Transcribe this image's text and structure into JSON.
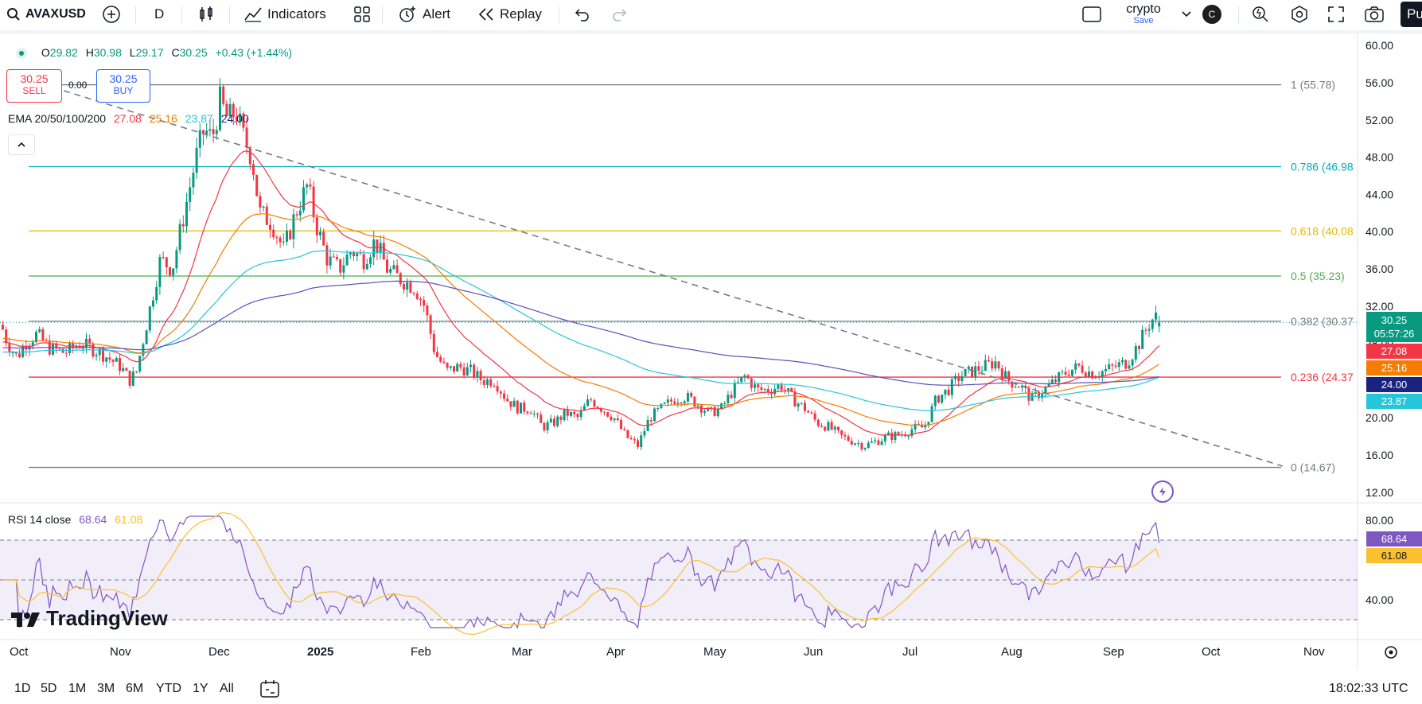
{
  "toolbar": {
    "symbol": "AVAXUSD",
    "interval": "D",
    "indicators_label": "Indicators",
    "alert_label": "Alert",
    "replay_label": "Replay",
    "layout_name": "crypto",
    "layout_sub": "Save",
    "avatar_letter": "C",
    "publish_label": "Pu"
  },
  "legend": {
    "o_label": "O",
    "o": "29.82",
    "h_label": "H",
    "h": "30.98",
    "l_label": "L",
    "l": "29.17",
    "c_label": "C",
    "c": "30.25",
    "change": "+0.43 (+1.44%)",
    "sell_price": "30.25",
    "sell_label": "SELL",
    "spread": "0.00",
    "buy_price": "30.25",
    "buy_label": "BUY",
    "ema_title": "EMA 20/50/100/200",
    "ema20": "27.08",
    "ema50": "25.16",
    "ema100": "23.87",
    "ema200": "24.00"
  },
  "rsi": {
    "title": "RSI 14 close",
    "value": "68.64",
    "ma": "61.08",
    "upper": 70,
    "middle": 50,
    "lower": 30,
    "axis_ticks": [
      "80.00",
      "40.00"
    ]
  },
  "chart_data": {
    "type": "candlestick",
    "symbol": "AVAXUSD",
    "interval": "1D",
    "y_axis_ticks": [
      60,
      56,
      52,
      48,
      44,
      40,
      36,
      32,
      28,
      24,
      20,
      16,
      12
    ],
    "ylim": [
      11,
      61
    ],
    "x_axis_labels": [
      "Oct",
      "Nov",
      "Dec",
      "2025",
      "Feb",
      "Mar",
      "Apr",
      "May",
      "Jun",
      "Jul",
      "Aug",
      "Sep",
      "Oct",
      "Nov"
    ],
    "last_price": "30.25",
    "countdown": "05:57:26",
    "price_tags": [
      {
        "label": "27.08",
        "color": "#f23645"
      },
      {
        "label": "25.16",
        "color": "#f57c00"
      },
      {
        "label": "24.00",
        "color": "#1a237e"
      },
      {
        "label": "23.87",
        "color": "#26c6da"
      }
    ],
    "fib_levels": [
      {
        "label": "1 (55.78)",
        "value": 55.78,
        "color": "#787b86"
      },
      {
        "label": "0.786 (46.98",
        "value": 46.98,
        "color": "#00acc1"
      },
      {
        "label": "0.618 (40.08",
        "value": 40.08,
        "color": "#e6b800"
      },
      {
        "label": "0.5 (35.23)",
        "value": 35.23,
        "color": "#4caf50"
      },
      {
        "label": "0.382 (30.37",
        "value": 30.37,
        "color": "#787b86"
      },
      {
        "label": "0.236 (24.37",
        "value": 24.37,
        "color": "#f23645"
      },
      {
        "label": "0 (14.67)",
        "value": 14.67,
        "color": "#787b86"
      }
    ],
    "colors": {
      "up": "#089981",
      "down": "#f23645",
      "ema20": "#f23645",
      "ema50": "#f57c00",
      "ema100": "#26c6da",
      "ema200": "#5b4fbf",
      "rsi": "#7e57c2",
      "rsi_ma": "#fbc02d"
    },
    "watermark": "TradingView"
  },
  "bottombar": {
    "ranges": [
      "1D",
      "5D",
      "1M",
      "3M",
      "6M",
      "YTD",
      "1Y",
      "All"
    ],
    "time": "18:02:33 UTC"
  },
  "icons": [
    "search-icon",
    "plus-circle-icon",
    "candles-icon",
    "indicators-icon",
    "templates-icon",
    "alert-icon",
    "replay-icon",
    "undo-icon",
    "redo-icon",
    "layout-icon",
    "chevron-down-icon",
    "quick-search-icon",
    "settings-icon",
    "fullscreen-icon",
    "camera-icon",
    "calendar-range-icon",
    "gear-icon",
    "flash-icon"
  ]
}
